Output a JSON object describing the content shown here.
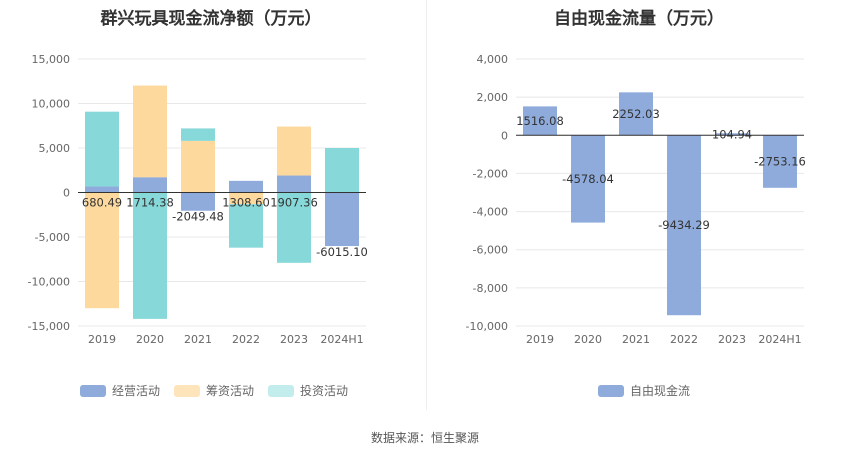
{
  "titles": {
    "left": "群兴玩具现金流净额（万元）",
    "right": "自由现金流量（万元）"
  },
  "source": "数据来源：恒生聚源",
  "colors": {
    "operating": "#8eabdb",
    "financing": "#fed99d",
    "investing": "#87d8d9",
    "free_cash_flow": "#8eabdb",
    "grid": "#e8e8e8",
    "zero_line": "#333333"
  },
  "chart_data": [
    {
      "type": "bar",
      "stacked": true,
      "title": "群兴玩具现金流净额（万元）",
      "categories": [
        "2019",
        "2020",
        "2021",
        "2022",
        "2023",
        "2024H1"
      ],
      "ylim": [
        -15000,
        15000
      ],
      "yticks": [
        15000,
        10000,
        5000,
        0,
        -5000,
        -10000,
        -15000
      ],
      "ytick_labels": [
        "15,000",
        "10,000",
        "5,000",
        "0",
        "-5,000",
        "-10,000",
        "-15,000"
      ],
      "grid": true,
      "legend": "bottom",
      "series": [
        {
          "name": "经营活动",
          "color_key": "operating",
          "values": [
            680.49,
            1714.38,
            -2049.48,
            1308.6,
            1907.36,
            -6015.1
          ],
          "labels": [
            "680.49",
            "1714.38",
            "-2049.48",
            "1308.60",
            "1907.36",
            "-6015.10"
          ]
        },
        {
          "name": "筹资活动",
          "color_key": "financing",
          "values": [
            -13000,
            10300,
            5800,
            -1300,
            5500,
            0
          ]
        },
        {
          "name": "投资活动",
          "color_key": "investing",
          "values": [
            8400,
            -14200,
            1400,
            -4900,
            -7900,
            5000
          ]
        }
      ]
    },
    {
      "type": "bar",
      "title": "自由现金流量（万元）",
      "categories": [
        "2019",
        "2020",
        "2021",
        "2022",
        "2023",
        "2024H1"
      ],
      "ylim": [
        -10000,
        4000
      ],
      "yticks": [
        4000,
        2000,
        0,
        -2000,
        -4000,
        -6000,
        -8000,
        -10000
      ],
      "ytick_labels": [
        "4,000",
        "2,000",
        "0",
        "-2,000",
        "-4,000",
        "-6,000",
        "-8,000",
        "-10,000"
      ],
      "grid": true,
      "legend": "bottom",
      "series": [
        {
          "name": "自由现金流",
          "color_key": "free_cash_flow",
          "values": [
            1516.08,
            -4578.04,
            2252.03,
            -9434.29,
            104.94,
            -2753.16
          ],
          "labels": [
            "1516.08",
            "-4578.04",
            "2252.03",
            "-9434.29",
            "104.94",
            "-2753.16"
          ]
        }
      ]
    }
  ]
}
